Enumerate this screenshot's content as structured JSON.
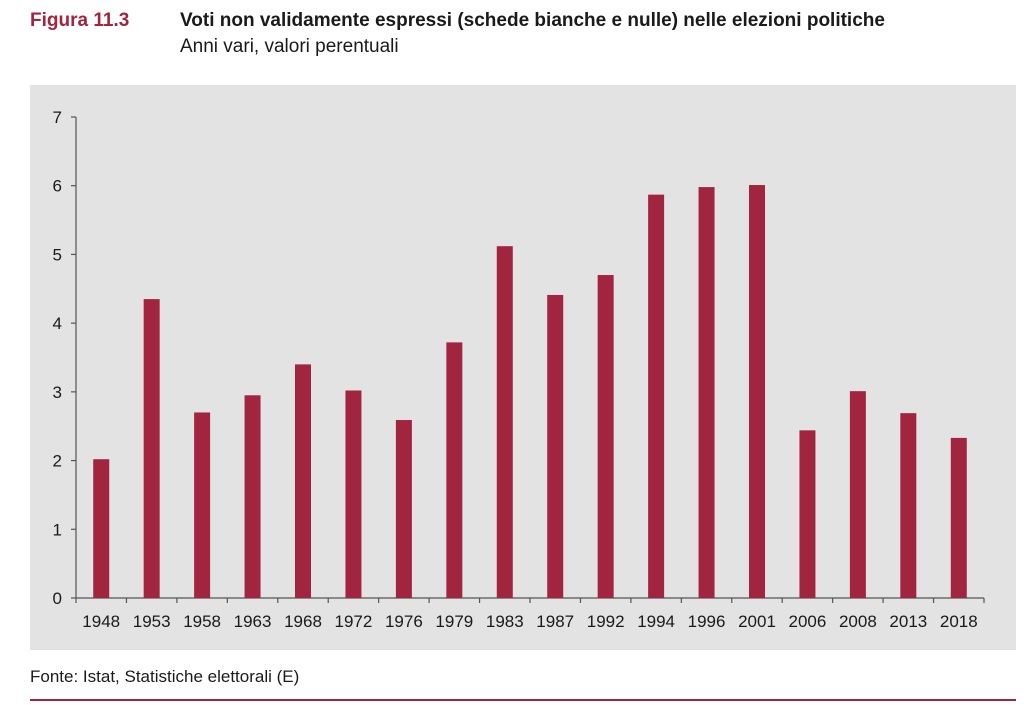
{
  "figure": {
    "label": "Figura 11.3",
    "title": "Voti non validamente espressi (schede bianche e nulle) nelle elezioni politiche",
    "subtitle": "Anni vari, valori perentuali"
  },
  "source": "Fonte: Istat, Statistiche elettorali (E)",
  "colors": {
    "accent": "#a1253f",
    "bar": "#a1253f",
    "plot_background": "#e3e3e3"
  },
  "chart_data": {
    "type": "bar",
    "title": "Voti non validamente espressi (schede bianche e nulle) nelle elezioni politiche",
    "subtitle": "Anni vari, valori perentuali",
    "xlabel": "",
    "ylabel": "",
    "categories": [
      "1948",
      "1953",
      "1958",
      "1963",
      "1968",
      "1972",
      "1976",
      "1979",
      "1983",
      "1987",
      "1992",
      "1994",
      "1996",
      "2001",
      "2006",
      "2008",
      "2013",
      "2018"
    ],
    "values": [
      2.02,
      4.35,
      2.7,
      2.95,
      3.4,
      3.02,
      2.59,
      3.72,
      5.12,
      4.41,
      4.7,
      5.87,
      5.98,
      6.01,
      2.44,
      3.01,
      2.69,
      2.33
    ],
    "ylim": [
      0,
      7
    ],
    "yticks": [
      "0",
      "1",
      "2",
      "3",
      "4",
      "5",
      "6",
      "7"
    ],
    "grid": false,
    "legend": "none"
  }
}
